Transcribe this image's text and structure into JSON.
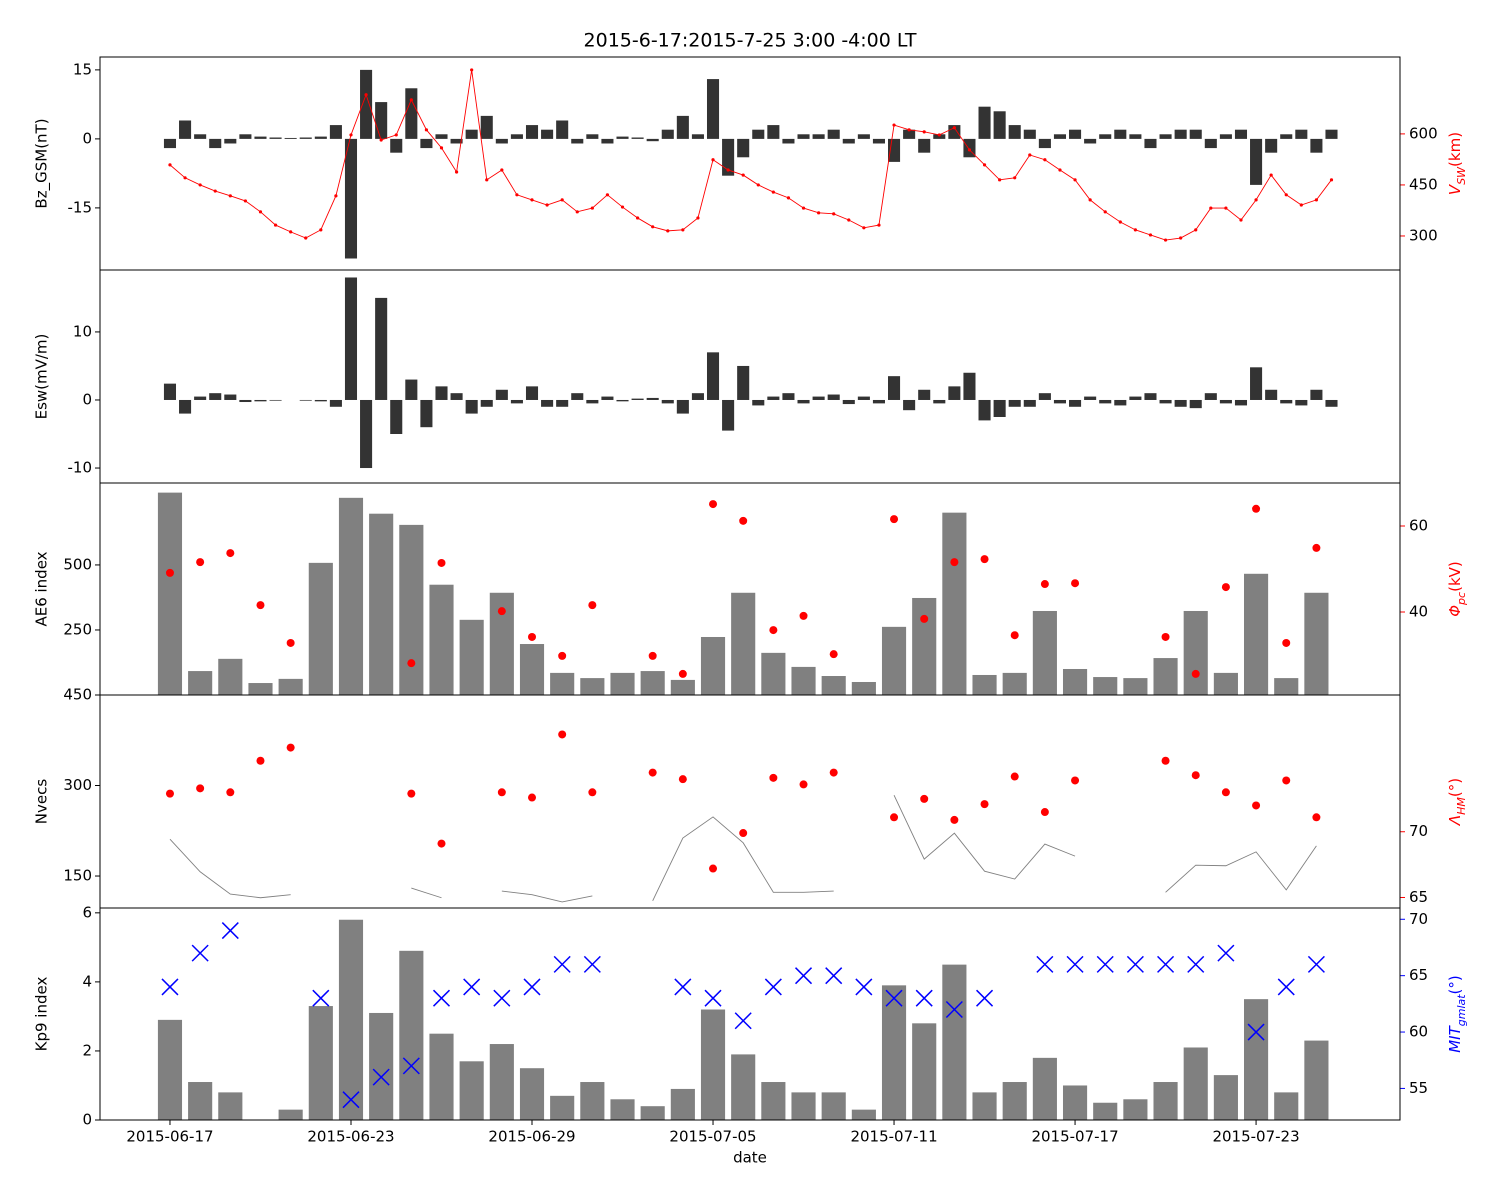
{
  "chart_data": [
    {
      "type": "combo",
      "title": "2015-6-17:2015-7-25 3:00 -4:00 LT",
      "ylabel": "Bz_GSM(nT)",
      "y2label": [
        "V",
        "SW",
        "(km)"
      ],
      "y2color": "#ff0000",
      "xlim": [
        "2015-06-14T16:20",
        "2015-07-27T18:30"
      ],
      "ylim": [
        -28.5,
        17.8
      ],
      "yticks": [
        -15,
        0,
        15
      ],
      "y2lim": [
        200,
        826
      ],
      "y2ticks": [
        300,
        450,
        600
      ],
      "x": [
        "2015-06-17T00:00",
        "2015-06-17T12:00",
        "2015-06-18T00:00",
        "2015-06-18T12:00",
        "2015-06-19T00:00",
        "2015-06-19T12:00",
        "2015-06-20T00:00",
        "2015-06-20T12:00",
        "2015-06-21T00:00",
        "2015-06-21T12:00",
        "2015-06-22T00:00",
        "2015-06-22T12:00",
        "2015-06-23T00:00",
        "2015-06-23T12:00",
        "2015-06-24T00:00",
        "2015-06-24T12:00",
        "2015-06-25T00:00",
        "2015-06-25T12:00",
        "2015-06-26T00:00",
        "2015-06-26T12:00",
        "2015-06-27T00:00",
        "2015-06-27T12:00",
        "2015-06-28T00:00",
        "2015-06-28T12:00",
        "2015-06-29T00:00",
        "2015-06-29T12:00",
        "2015-06-30T00:00",
        "2015-06-30T12:00",
        "2015-07-01T00:00",
        "2015-07-01T12:00",
        "2015-07-02T00:00",
        "2015-07-02T12:00",
        "2015-07-03T00:00",
        "2015-07-03T12:00",
        "2015-07-04T00:00",
        "2015-07-04T12:00",
        "2015-07-05T00:00",
        "2015-07-05T12:00",
        "2015-07-06T00:00",
        "2015-07-06T12:00",
        "2015-07-07T00:00",
        "2015-07-07T12:00",
        "2015-07-08T00:00",
        "2015-07-08T12:00",
        "2015-07-09T00:00",
        "2015-07-09T12:00",
        "2015-07-10T00:00",
        "2015-07-10T12:00",
        "2015-07-11T00:00",
        "2015-07-11T12:00",
        "2015-07-12T00:00",
        "2015-07-12T12:00",
        "2015-07-13T00:00",
        "2015-07-13T12:00",
        "2015-07-14T00:00",
        "2015-07-14T12:00",
        "2015-07-15T00:00",
        "2015-07-15T12:00",
        "2015-07-16T00:00",
        "2015-07-16T12:00",
        "2015-07-17T00:00",
        "2015-07-17T12:00",
        "2015-07-18T00:00",
        "2015-07-18T12:00",
        "2015-07-19T00:00",
        "2015-07-19T12:00",
        "2015-07-20T00:00",
        "2015-07-20T12:00",
        "2015-07-21T00:00",
        "2015-07-21T12:00",
        "2015-07-22T00:00",
        "2015-07-22T12:00",
        "2015-07-23T00:00",
        "2015-07-23T12:00",
        "2015-07-24T00:00",
        "2015-07-24T12:00",
        "2015-07-25T00:00",
        "2015-07-25T12:00"
      ],
      "series": [
        {
          "type": "bar",
          "color": "#333333",
          "values": [
            -2,
            4,
            1,
            -2,
            -1,
            1,
            0.5,
            0.3,
            0.2,
            0.3,
            0.5,
            3,
            -26,
            15,
            8,
            -3,
            11,
            -2,
            1,
            -1,
            2,
            5,
            -1,
            1,
            3,
            2,
            4,
            -1,
            1,
            -1,
            0.5,
            0.3,
            -0.5,
            2,
            5,
            1,
            13,
            -8,
            -4,
            2,
            3,
            -1,
            1,
            1,
            2,
            -1,
            1,
            -1,
            -5,
            2,
            -3,
            1,
            3,
            -4,
            7,
            6,
            3,
            2,
            -2,
            1,
            2,
            -1,
            1,
            2,
            1,
            -2,
            1,
            2,
            2,
            -2,
            1,
            2,
            -10,
            -3,
            1,
            2,
            -3,
            2
          ]
        },
        {
          "type": "line",
          "marker": ".",
          "axis": "y2",
          "color": "#ff0000",
          "values": [
            509,
            471,
            450,
            432,
            418,
            403,
            371,
            332,
            312,
            294,
            318,
            418,
            597,
            715,
            582,
            597,
            700,
            612,
            559,
            488,
            788,
            465,
            494,
            421,
            406,
            391,
            406,
            371,
            382,
            421,
            385,
            353,
            327,
            315,
            318,
            353,
            524,
            494,
            479,
            450,
            429,
            412,
            382,
            368,
            365,
            347,
            324,
            332,
            626,
            612,
            606,
            597,
            618,
            553,
            509,
            465,
            471,
            538,
            524,
            494,
            465,
            406,
            371,
            341,
            318,
            303,
            288,
            294,
            318,
            382,
            382,
            347,
            406,
            479,
            421,
            391,
            406,
            465
          ]
        }
      ]
    },
    {
      "type": "combo",
      "ylabel": "Esw(mV/m)",
      "xlim": [
        "2015-06-14T16:20",
        "2015-07-27T18:30"
      ],
      "ylim": [
        -12.2,
        19.1
      ],
      "yticks": [
        -10,
        0,
        10
      ],
      "x": [
        "2015-06-17T00:00",
        "2015-06-17T12:00",
        "2015-06-18T00:00",
        "2015-06-18T12:00",
        "2015-06-19T00:00",
        "2015-06-19T12:00",
        "2015-06-20T00:00",
        "2015-06-20T12:00",
        "2015-06-21T00:00",
        "2015-06-21T12:00",
        "2015-06-22T00:00",
        "2015-06-22T12:00",
        "2015-06-23T00:00",
        "2015-06-23T12:00",
        "2015-06-24T00:00",
        "2015-06-24T12:00",
        "2015-06-25T00:00",
        "2015-06-25T12:00",
        "2015-06-26T00:00",
        "2015-06-26T12:00",
        "2015-06-27T00:00",
        "2015-06-27T12:00",
        "2015-06-28T00:00",
        "2015-06-28T12:00",
        "2015-06-29T00:00",
        "2015-06-29T12:00",
        "2015-06-30T00:00",
        "2015-06-30T12:00",
        "2015-07-01T00:00",
        "2015-07-01T12:00",
        "2015-07-02T00:00",
        "2015-07-02T12:00",
        "2015-07-03T00:00",
        "2015-07-03T12:00",
        "2015-07-04T00:00",
        "2015-07-04T12:00",
        "2015-07-05T00:00",
        "2015-07-05T12:00",
        "2015-07-06T00:00",
        "2015-07-06T12:00",
        "2015-07-07T00:00",
        "2015-07-07T12:00",
        "2015-07-08T00:00",
        "2015-07-08T12:00",
        "2015-07-09T00:00",
        "2015-07-09T12:00",
        "2015-07-10T00:00",
        "2015-07-10T12:00",
        "2015-07-11T00:00",
        "2015-07-11T12:00",
        "2015-07-12T00:00",
        "2015-07-12T12:00",
        "2015-07-13T00:00",
        "2015-07-13T12:00",
        "2015-07-14T00:00",
        "2015-07-14T12:00",
        "2015-07-15T00:00",
        "2015-07-15T12:00",
        "2015-07-16T00:00",
        "2015-07-16T12:00",
        "2015-07-17T00:00",
        "2015-07-17T12:00",
        "2015-07-18T00:00",
        "2015-07-18T12:00",
        "2015-07-19T00:00",
        "2015-07-19T12:00",
        "2015-07-20T00:00",
        "2015-07-20T12:00",
        "2015-07-21T00:00",
        "2015-07-21T12:00",
        "2015-07-22T00:00",
        "2015-07-22T12:00",
        "2015-07-23T00:00",
        "2015-07-23T12:00",
        "2015-07-24T00:00",
        "2015-07-24T12:00",
        "2015-07-25T00:00",
        "2015-07-25T12:00"
      ],
      "series": [
        {
          "type": "bar",
          "color": "#333333",
          "values": [
            2.4,
            -2,
            0.5,
            1,
            0.8,
            -0.3,
            -0.2,
            -0.1,
            0,
            -0.1,
            -0.2,
            -1,
            18,
            -10,
            15,
            -5,
            3,
            -4,
            2,
            1,
            -2,
            -1,
            1.5,
            -0.5,
            2,
            -1,
            -1,
            1,
            -0.5,
            0.5,
            -0.2,
            0.2,
            0.3,
            -0.5,
            -2,
            1,
            7,
            -4.5,
            5,
            -0.8,
            0.5,
            1,
            -0.5,
            0.5,
            0.8,
            -0.6,
            0.5,
            -0.5,
            3.5,
            -1.5,
            1.5,
            -0.5,
            2,
            4,
            -3,
            -2.5,
            -1,
            -1,
            1,
            -0.5,
            -1,
            0.5,
            -0.5,
            -0.8,
            0.5,
            1,
            -0.5,
            -1,
            -1.2,
            1,
            -0.5,
            -0.8,
            4.8,
            1.5,
            -0.5,
            -0.8,
            1.5,
            -1
          ]
        }
      ]
    },
    {
      "type": "combo",
      "ylabel": "AE6 index",
      "y2label": [
        "Φ",
        "pc",
        "(kV)"
      ],
      "y2color": "#ff0000",
      "xlim": [
        "2015-06-14T16:20",
        "2015-07-27T18:30"
      ],
      "ylim": [
        0,
        815
      ],
      "yticks": [
        250,
        500
      ],
      "y2lim": [
        20.7,
        70
      ],
      "y2ticks": [
        40,
        60
      ],
      "x": [
        "2015-06-17",
        "2015-06-18",
        "2015-06-19",
        "2015-06-20",
        "2015-06-21",
        "2015-06-22",
        "2015-06-23",
        "2015-06-24",
        "2015-06-25",
        "2015-06-26",
        "2015-06-27",
        "2015-06-28",
        "2015-06-29",
        "2015-06-30",
        "2015-07-01",
        "2015-07-02",
        "2015-07-03",
        "2015-07-04",
        "2015-07-05",
        "2015-07-06",
        "2015-07-07",
        "2015-07-08",
        "2015-07-09",
        "2015-07-10",
        "2015-07-11",
        "2015-07-12",
        "2015-07-13",
        "2015-07-14",
        "2015-07-15",
        "2015-07-16",
        "2015-07-17",
        "2015-07-18",
        "2015-07-19",
        "2015-07-20",
        "2015-07-21",
        "2015-07-22",
        "2015-07-23",
        "2015-07-24",
        "2015-07-25"
      ],
      "series": [
        {
          "type": "bar",
          "color": "#808080",
          "values": [
            778,
            92,
            139,
            46,
            62,
            508,
            758,
            697,
            654,
            424,
            289,
            393,
            196,
            85,
            65,
            85,
            92,
            58,
            223,
            393,
            162,
            108,
            73,
            50,
            262,
            373,
            701,
            77,
            85,
            323,
            100,
            69,
            65,
            142,
            323,
            85,
            466,
            65,
            393
          ]
        },
        {
          "type": "scatter",
          "marker": "o",
          "axis": "y2",
          "color": "#ff0000",
          "values": [
            49.1,
            51.6,
            53.7,
            41.6,
            32.8,
            null,
            null,
            null,
            28.1,
            51.4,
            null,
            40.2,
            34.2,
            29.8,
            41.6,
            null,
            29.8,
            25.6,
            65.1,
            61.2,
            35.8,
            39.1,
            30.2,
            null,
            61.6,
            38.4,
            51.6,
            52.3,
            34.6,
            46.5,
            46.7,
            null,
            null,
            34.2,
            25.6,
            45.8,
            64.0,
            32.8,
            54.9
          ]
        }
      ]
    },
    {
      "type": "combo",
      "ylabel": "Nvecs",
      "y2label": [
        "Λ",
        "HM",
        "(°)"
      ],
      "y2color": "#ff0000",
      "xlim": [
        "2015-06-14T16:20",
        "2015-07-27T18:30"
      ],
      "ylim": [
        97,
        450
      ],
      "yticks": [
        150,
        300,
        450
      ],
      "y2lim": [
        64.2,
        80.4
      ],
      "y2ticks": [
        65,
        70
      ],
      "x": [
        "2015-06-17",
        "2015-06-18",
        "2015-06-19",
        "2015-06-20",
        "2015-06-21",
        "2015-06-22",
        "2015-06-23",
        "2015-06-24",
        "2015-06-25",
        "2015-06-26",
        "2015-06-27",
        "2015-06-28",
        "2015-06-29",
        "2015-06-30",
        "2015-07-01",
        "2015-07-02",
        "2015-07-03",
        "2015-07-04",
        "2015-07-05",
        "2015-07-06",
        "2015-07-07",
        "2015-07-08",
        "2015-07-09",
        "2015-07-10",
        "2015-07-11",
        "2015-07-12",
        "2015-07-13",
        "2015-07-14",
        "2015-07-15",
        "2015-07-16",
        "2015-07-17",
        "2015-07-18",
        "2015-07-19",
        "2015-07-20",
        "2015-07-21",
        "2015-07-22",
        "2015-07-23",
        "2015-07-24",
        "2015-07-25"
      ],
      "series": [
        {
          "type": "line",
          "color": "#808080",
          "values": [
            211,
            157,
            120,
            114,
            119,
            null,
            null,
            null,
            130,
            114,
            null,
            125,
            119,
            107,
            117,
            null,
            109,
            213,
            248,
            205,
            123,
            123,
            125,
            null,
            284,
            178,
            221,
            158,
            145,
            203,
            183,
            null,
            null,
            123,
            168,
            167,
            190,
            127,
            200
          ]
        },
        {
          "type": "scatter",
          "marker": "o",
          "axis": "y2",
          "color": "#ff0000",
          "values": [
            72.9,
            73.3,
            73.0,
            75.4,
            76.4,
            null,
            null,
            null,
            72.9,
            69.1,
            null,
            73.0,
            72.6,
            77.4,
            73.0,
            null,
            74.5,
            74.0,
            67.2,
            69.9,
            74.1,
            73.6,
            74.5,
            null,
            71.1,
            72.5,
            70.9,
            72.1,
            74.2,
            71.5,
            73.9,
            null,
            null,
            75.4,
            74.3,
            73.0,
            72.0,
            73.9,
            71.1
          ]
        }
      ]
    },
    {
      "type": "combo",
      "ylabel": "Kp9 index",
      "y2label": [
        "MIT",
        "gmlat",
        "(°)"
      ],
      "y2color": "#0000ff",
      "xlabel": "date",
      "xlim": [
        "2015-06-14T16:20",
        "2015-07-27T18:30"
      ],
      "xticks": [
        "2015-06-17",
        "2015-06-23",
        "2015-06-29",
        "2015-07-05",
        "2015-07-11",
        "2015-07-17",
        "2015-07-23"
      ],
      "ylim": [
        0,
        6.14
      ],
      "yticks": [
        0,
        2,
        4,
        6
      ],
      "y2lim": [
        52.2,
        71
      ],
      "y2ticks": [
        55,
        60,
        65,
        70
      ],
      "x": [
        "2015-06-17",
        "2015-06-18",
        "2015-06-19",
        "2015-06-20",
        "2015-06-21",
        "2015-06-22",
        "2015-06-23",
        "2015-06-24",
        "2015-06-25",
        "2015-06-26",
        "2015-06-27",
        "2015-06-28",
        "2015-06-29",
        "2015-06-30",
        "2015-07-01",
        "2015-07-02",
        "2015-07-03",
        "2015-07-04",
        "2015-07-05",
        "2015-07-06",
        "2015-07-07",
        "2015-07-08",
        "2015-07-09",
        "2015-07-10",
        "2015-07-11",
        "2015-07-12",
        "2015-07-13",
        "2015-07-14",
        "2015-07-15",
        "2015-07-16",
        "2015-07-17",
        "2015-07-18",
        "2015-07-19",
        "2015-07-20",
        "2015-07-21",
        "2015-07-22",
        "2015-07-23",
        "2015-07-24",
        "2015-07-25"
      ],
      "series": [
        {
          "type": "bar",
          "color": "#808080",
          "values": [
            2.9,
            1.1,
            0.8,
            0,
            0.3,
            3.3,
            5.8,
            3.1,
            4.9,
            2.5,
            1.7,
            2.2,
            1.5,
            0.7,
            1.1,
            0.6,
            0.4,
            0.9,
            3.2,
            1.9,
            1.1,
            0.8,
            0.8,
            0.3,
            3.9,
            2.8,
            4.5,
            0.8,
            1.1,
            1.8,
            1.0,
            0.5,
            0.6,
            1.1,
            2.1,
            1.3,
            3.5,
            0.8,
            2.3
          ]
        },
        {
          "type": "scatter",
          "marker": "x",
          "axis": "y2",
          "color": "#0000ff",
          "values": [
            64,
            67,
            69,
            null,
            null,
            63,
            54,
            56,
            57,
            63,
            64,
            63,
            64,
            66,
            66,
            null,
            null,
            64,
            63,
            61,
            64,
            65,
            65,
            64,
            63,
            63,
            62,
            63,
            null,
            66,
            66,
            66,
            66,
            66,
            66,
            67,
            60,
            64,
            66
          ]
        }
      ]
    }
  ]
}
